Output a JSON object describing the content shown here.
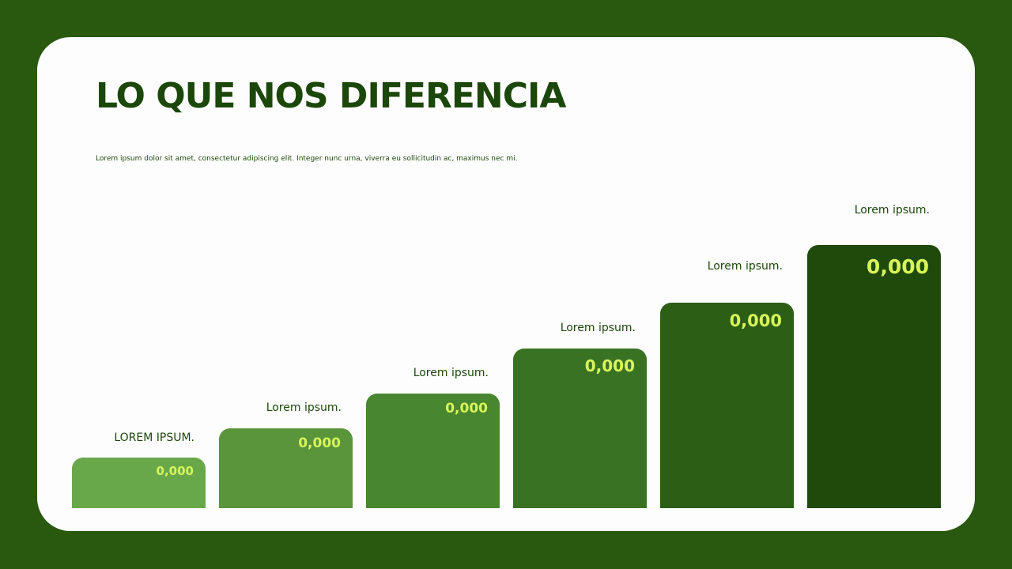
{
  "header": {
    "title": "LO QUE NOS DIFERENCIA",
    "subtitle": "Lorem ipsum dolor sit amet, consectetur adipiscing elit. Integer nunc urna, viverra eu sollicitudin ac, maximus nec mi."
  },
  "steps": [
    {
      "label": "LOREM IPSUM.",
      "value": "0,000"
    },
    {
      "label": "Lorem ipsum.",
      "value": "0,000"
    },
    {
      "label": "Lorem ipsum.",
      "value": "0,000"
    },
    {
      "label": "Lorem ipsum.",
      "value": "0,000"
    },
    {
      "label": "Lorem ipsum.",
      "value": "0,000"
    },
    {
      "label": "Lorem ipsum.",
      "value": "0,000"
    }
  ]
}
